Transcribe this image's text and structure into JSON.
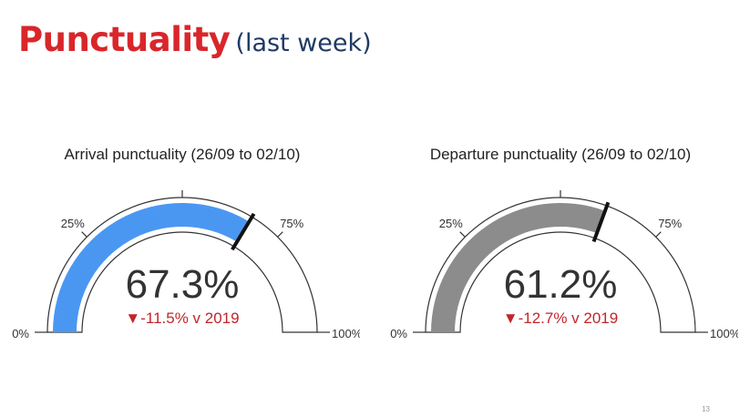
{
  "slide": {
    "title_main": "Punctuality",
    "title_sub": "(last week)",
    "page_number": "13"
  },
  "colors": {
    "title_accent": "#d9262b",
    "subtitle": "#1f3a64",
    "arrival_fill": "#4a97f2",
    "departure_fill": "#8c8c8c",
    "delta_negative": "#c0262b",
    "needle": "#111111"
  },
  "chart_data": [
    {
      "type": "gauge",
      "title": "Arrival punctuality (26/09 to 02/10)",
      "value": 67.3,
      "value_label": "67.3%",
      "delta": -11.5,
      "delta_label": "▼-11.5% v 2019",
      "range": [
        0,
        100
      ],
      "tick_labels": [
        "0%",
        "25%",
        "75%",
        "100%"
      ],
      "ticks": [
        0,
        25,
        50,
        75,
        100
      ],
      "fill_color": "#4a97f2"
    },
    {
      "type": "gauge",
      "title": "Departure punctuality (26/09 to 02/10)",
      "value": 61.2,
      "value_label": "61.2%",
      "delta": -12.7,
      "delta_label": "▼-12.7% v 2019",
      "range": [
        0,
        100
      ],
      "tick_labels": [
        "0%",
        "25%",
        "75%",
        "100%"
      ],
      "ticks": [
        0,
        25,
        50,
        75,
        100
      ],
      "fill_color": "#8c8c8c"
    }
  ]
}
